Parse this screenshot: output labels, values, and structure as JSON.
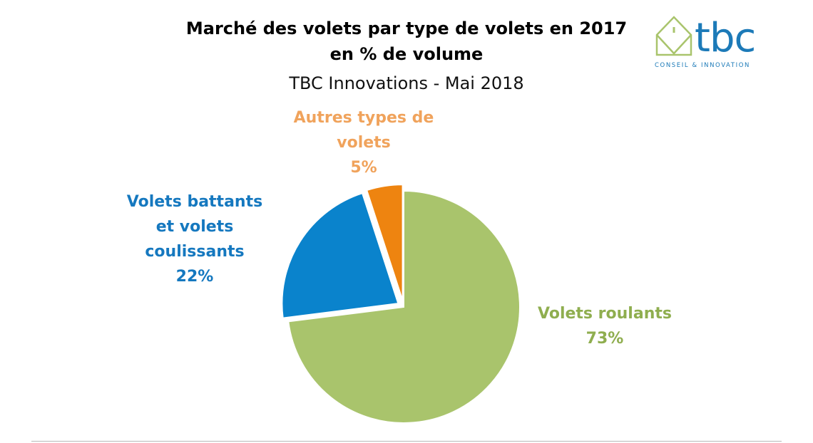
{
  "chart_data": {
    "type": "pie",
    "title_line1": "Marché des volets par type de volets en 2017",
    "title_line2": "en % de volume",
    "subtitle": "TBC Innovations - Mai 2018",
    "unit": "%",
    "slices": [
      {
        "label_lines": [
          "Volets roulants"
        ],
        "value": 73,
        "value_label": "73%",
        "color": "#a9c46c",
        "exploded": false
      },
      {
        "label_lines": [
          "Volets battants",
          "et volets",
          "coulissants"
        ],
        "value": 22,
        "value_label": "22%",
        "color": "#0a83cc",
        "exploded": true
      },
      {
        "label_lines": [
          "Autres types de",
          "volets"
        ],
        "value": 5,
        "value_label": "5%",
        "color": "#ee8410",
        "exploded": true
      }
    ],
    "label_colors": [
      "#8fae4f",
      "#1578bf",
      "#f0a35c"
    ],
    "start_angle": "12 o'clock",
    "direction": "clockwise"
  },
  "logo": {
    "text": "tbc",
    "tagline": "CONSEIL & INNOVATION",
    "color": "#1c7ab8",
    "accent_color": "#a9c46c",
    "icon": "house-outline-icon"
  }
}
